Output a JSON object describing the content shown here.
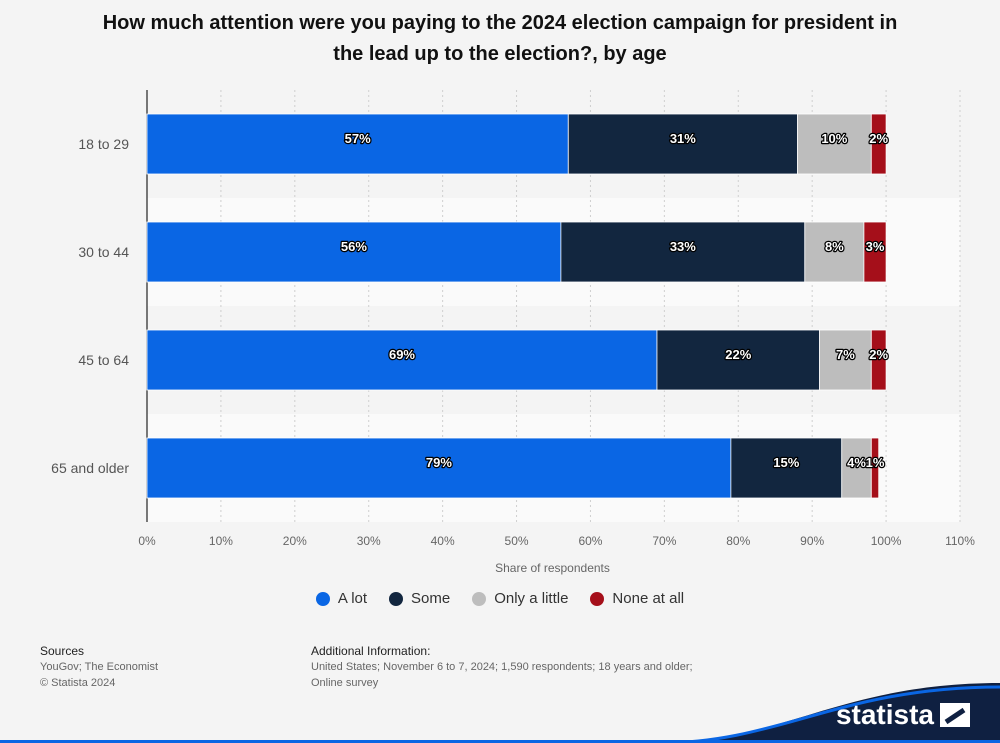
{
  "chart_data": {
    "type": "bar",
    "orientation": "horizontal",
    "stacked": true,
    "title": "How much attention were you paying to the 2024 election campaign for president in the lead up to the election?, by age",
    "categories": [
      "18 to 29",
      "30 to 44",
      "45 to 64",
      "65 and older"
    ],
    "series": [
      {
        "name": "A lot",
        "color": "#0a66e4",
        "values": [
          57,
          56,
          69,
          79
        ]
      },
      {
        "name": "Some",
        "color": "#12263f",
        "values": [
          31,
          33,
          22,
          15
        ]
      },
      {
        "name": "Only a little",
        "color": "#bdbdbd",
        "values": [
          10,
          8,
          7,
          4
        ]
      },
      {
        "name": "None at all",
        "color": "#a50f1a",
        "values": [
          2,
          3,
          2,
          1
        ]
      }
    ],
    "xlabel": "Share of respondents",
    "xlim": [
      0,
      110
    ],
    "xticks": [
      "0%",
      "10%",
      "20%",
      "30%",
      "40%",
      "50%",
      "60%",
      "70%",
      "80%",
      "90%",
      "100%",
      "110%"
    ],
    "value_suffix": "%",
    "grid": true,
    "legend_position": "bottom"
  },
  "footer": {
    "sources_heading": "Sources",
    "sources_lines": [
      "YouGov; The Economist",
      "© Statista 2024"
    ],
    "info_heading": "Additional Information:",
    "info_text": "United States; November 6 to 7, 2024; 1,590 respondents; 18 years and older; Online survey"
  },
  "brand": {
    "logo_text": "statista",
    "accent_color": "#0a66e4",
    "dark_color": "#0f2041"
  }
}
